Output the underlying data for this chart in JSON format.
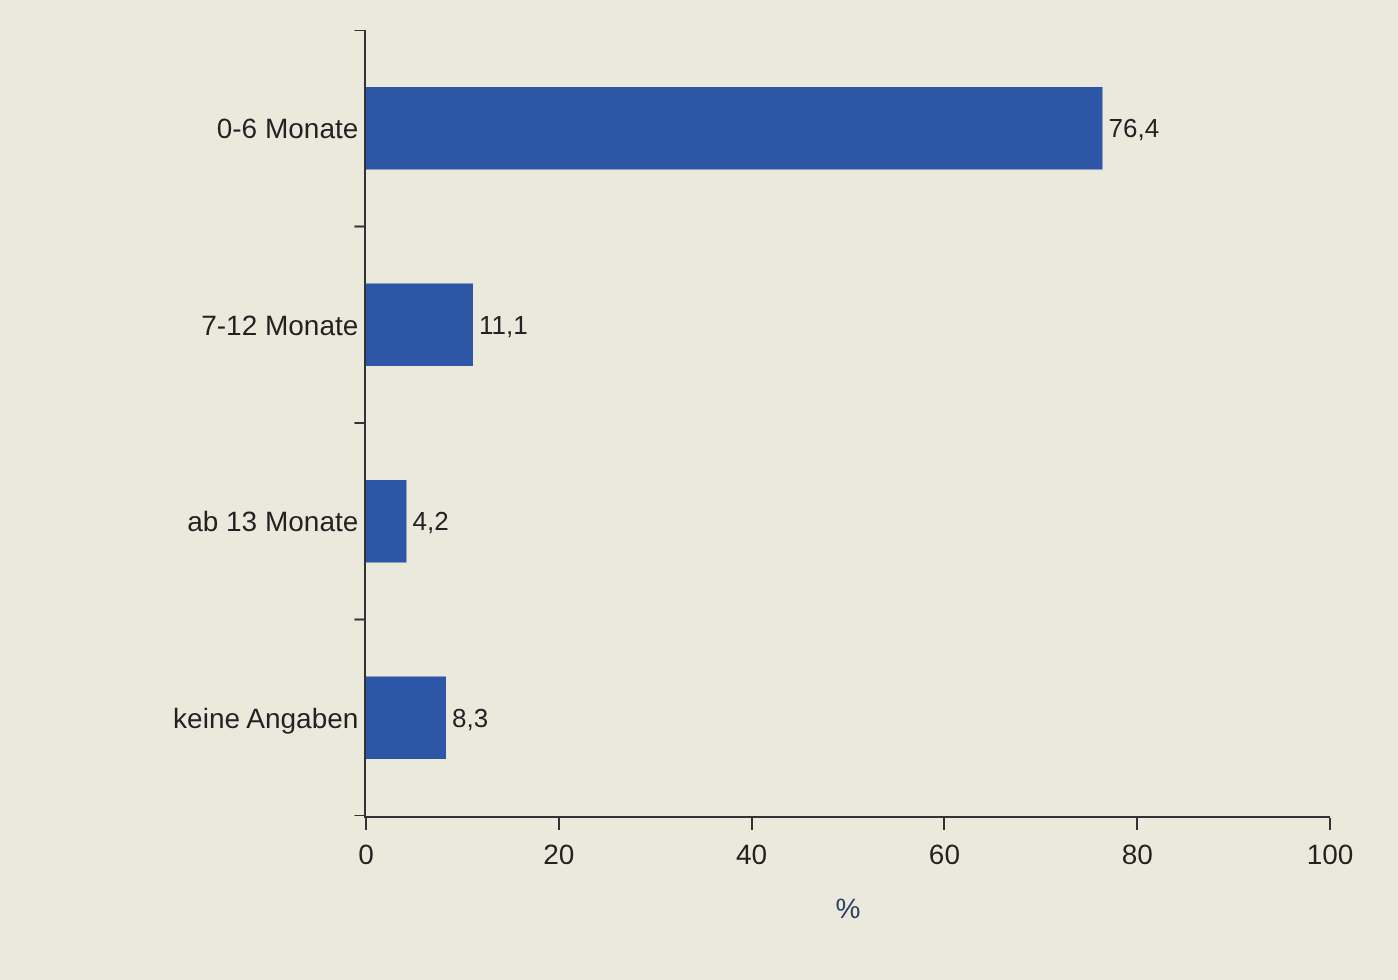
{
  "chart_data": {
    "type": "bar",
    "orientation": "horizontal",
    "xlabel": "%",
    "categories": [
      "0-6 Monate",
      "7-12 Monate",
      "ab 13 Monate",
      "keine Angaben"
    ],
    "values": [
      76.4,
      11.1,
      4.2,
      8.3
    ],
    "value_labels": [
      "76,4",
      "11,1",
      "4,2",
      "8,3"
    ],
    "color": "#2d56a6",
    "xlim": [
      0,
      100
    ],
    "xticks": [
      0,
      20,
      40,
      60,
      80,
      100
    ],
    "grid": false,
    "legend": false
  }
}
